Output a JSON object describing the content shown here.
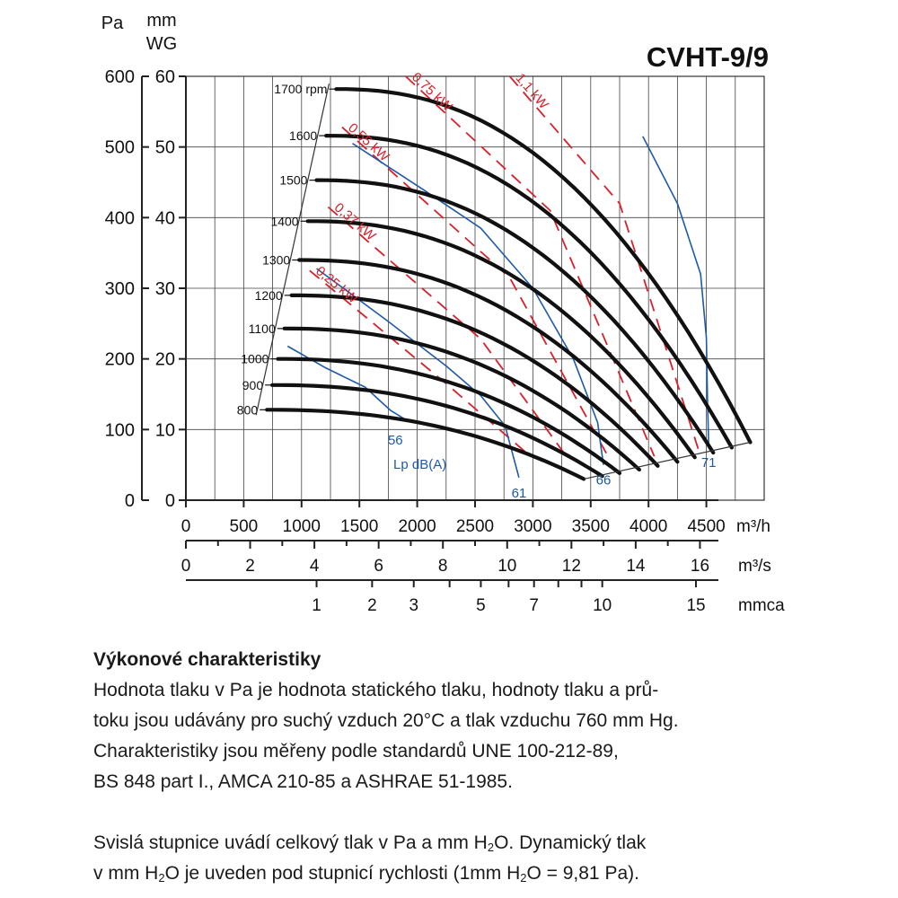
{
  "chart_data": {
    "type": "line",
    "title": "CVHT-9/9",
    "y_left_unit": "Pa",
    "y_right_unit_line1": "mm",
    "y_right_unit_line2": "WG",
    "x_unit_m3h": "m³/h",
    "x_unit_m3s": "m³/s",
    "x_unit_mmca": "mmca",
    "xlim": [
      0,
      5000
    ],
    "ylim": [
      0,
      600
    ],
    "grid": true,
    "y_pa_ticks": [
      "0",
      "100",
      "200",
      "300",
      "400",
      "500",
      "600"
    ],
    "y_mmwg_ticks": [
      "0",
      "10",
      "20",
      "30",
      "40",
      "50",
      "60"
    ],
    "x_m3h_ticks": [
      "0",
      "500",
      "1000",
      "1500",
      "2000",
      "2500",
      "3000",
      "3500",
      "4000",
      "4500"
    ],
    "x_m3s_ticks": [
      "0",
      "2",
      "4",
      "6",
      "8",
      "10",
      "12",
      "14",
      "16"
    ],
    "mmca_ticks": [
      {
        "label": "1",
        "at_m3h": 1130
      },
      {
        "label": "2",
        "at_m3h": 1610
      },
      {
        "label": "3",
        "at_m3h": 1970
      },
      {
        "label": "",
        "at_m3h": 2280
      },
      {
        "label": "5",
        "at_m3h": 2550
      },
      {
        "label": "",
        "at_m3h": 2790
      },
      {
        "label": "7",
        "at_m3h": 3010
      },
      {
        "label": "",
        "at_m3h": 3220
      },
      {
        "label": "",
        "at_m3h": 3420
      },
      {
        "label": "10",
        "at_m3h": 3600
      },
      {
        "label": "15",
        "at_m3h": 4410
      }
    ],
    "speed_curves": [
      {
        "name": "1700 rpm",
        "y0": 582,
        "xmax": 4880
      },
      {
        "name": "1600",
        "y0": 516,
        "xmax": 4720
      },
      {
        "name": "1500",
        "y0": 453,
        "xmax": 4560
      },
      {
        "name": "1400",
        "y0": 395,
        "xmax": 4400
      },
      {
        "name": "1300",
        "y0": 340,
        "xmax": 4250
      },
      {
        "name": "1200",
        "y0": 290,
        "xmax": 4080
      },
      {
        "name": "1100",
        "y0": 243,
        "xmax": 3920
      },
      {
        "name": "1000",
        "y0": 200,
        "xmax": 3750
      },
      {
        "name": "900",
        "y0": 163,
        "xmax": 3600
      },
      {
        "name": "800",
        "y0": 128,
        "xmax": 3440
      }
    ],
    "power_lines": [
      {
        "name": "0,25 kW",
        "points": [
          [
            1070,
            325
          ],
          [
            2250,
            165
          ],
          [
            2980,
            62
          ]
        ]
      },
      {
        "name": "0,37 kW",
        "points": [
          [
            1230,
            415
          ],
          [
            2550,
            228
          ],
          [
            3290,
            62
          ]
        ]
      },
      {
        "name": "0,55 kW",
        "points": [
          [
            1350,
            528
          ],
          [
            2800,
            315
          ],
          [
            3650,
            62
          ]
        ]
      },
      {
        "name": "0,75 kW",
        "points": [
          [
            1900,
            600
          ],
          [
            3150,
            410
          ],
          [
            4050,
            62
          ]
        ]
      },
      {
        "name": "1,1 kW",
        "points": [
          [
            2800,
            600
          ],
          [
            3750,
            420
          ],
          [
            4450,
            62
          ]
        ]
      }
    ],
    "noise_lines": [
      {
        "name": "56",
        "points": [
          [
            880,
            218
          ],
          [
            1200,
            188
          ],
          [
            1550,
            160
          ],
          [
            1770,
            127
          ],
          [
            1920,
            112
          ]
        ]
      },
      {
        "name": "61",
        "points": [
          [
            1130,
            328
          ],
          [
            1750,
            253
          ],
          [
            2250,
            190
          ],
          [
            2550,
            148
          ],
          [
            2760,
            105
          ],
          [
            2880,
            32
          ]
        ]
      },
      {
        "name": "66",
        "points": [
          [
            1440,
            505
          ],
          [
            2050,
            440
          ],
          [
            2550,
            385
          ],
          [
            3000,
            300
          ],
          [
            3350,
            200
          ],
          [
            3560,
            110
          ],
          [
            3610,
            50
          ]
        ]
      },
      {
        "name": "71",
        "points": [
          [
            3950,
            515
          ],
          [
            4250,
            420
          ],
          [
            4450,
            320
          ],
          [
            4500,
            230
          ],
          [
            4510,
            140
          ],
          [
            4520,
            75
          ]
        ]
      }
    ],
    "noise_unit": "Lp dB(A)"
  },
  "description": {
    "heading": "Výkonové charakteristiky",
    "line1": "Hodnota tlaku v Pa je hodnota statického tlaku, hodnoty tlaku a prů-",
    "line2": "toku jsou udávány pro suchý vzduch 20°C a tlak vzduchu 760 mm Hg.",
    "line3": "Charakteristiky jsou měřeny podle standardů UNE 100-212-89,",
    "line4": "BS 848 part I., AMCA 210-85 a ASHRAE 51-1985.",
    "line5_pre": "Svislá stupnice uvádí celkový tlak v Pa a mm H",
    "line5_sub": "2",
    "line5_post": "O. Dynamický tlak",
    "line6_pre": "v mm H",
    "line6_sub": "2",
    "line6_mid": "O je uveden pod stupnicí rychlosti (1mm H",
    "line6_sub2": "2",
    "line6_post": "O = 9,81 Pa)."
  }
}
